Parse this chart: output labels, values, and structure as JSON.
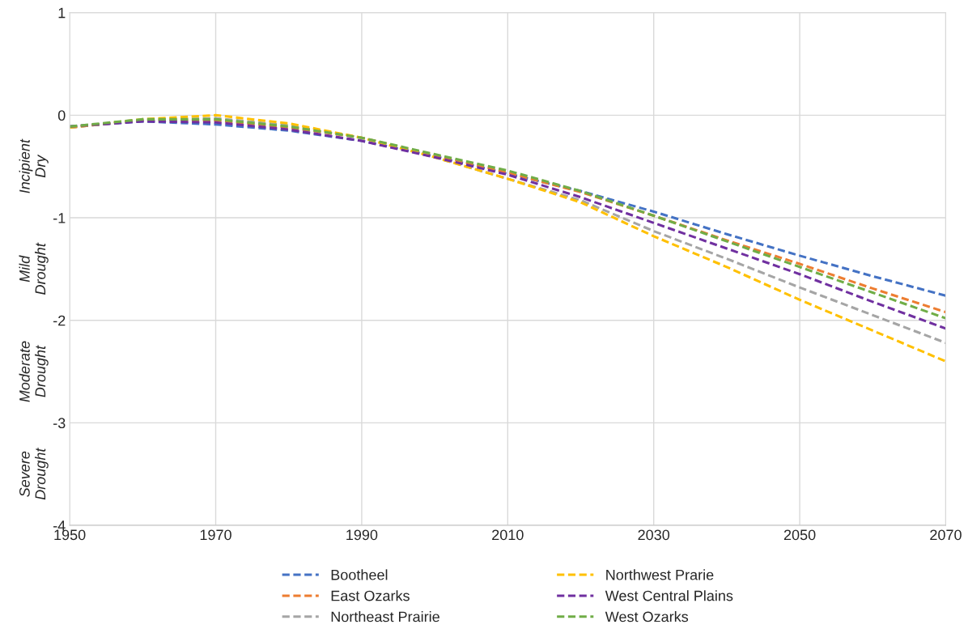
{
  "chart_data": {
    "type": "line",
    "x": [
      1950,
      1960,
      1970,
      1980,
      1990,
      2000,
      2010,
      2020,
      2030,
      2040,
      2050,
      2060,
      2070
    ],
    "series": [
      {
        "name": "Bootheel",
        "color": "#4472c4",
        "values": [
          -0.11,
          -0.06,
          -0.09,
          -0.15,
          -0.25,
          -0.4,
          -0.57,
          -0.74,
          -0.94,
          -1.16,
          -1.37,
          -1.57,
          -1.76
        ]
      },
      {
        "name": "East Ozarks",
        "color": "#ed7d31",
        "values": [
          -0.12,
          -0.05,
          -0.05,
          -0.12,
          -0.22,
          -0.39,
          -0.56,
          -0.75,
          -0.98,
          -1.22,
          -1.45,
          -1.69,
          -1.92
        ]
      },
      {
        "name": "Northeast Prairie",
        "color": "#a5a5a5",
        "values": [
          -0.12,
          -0.05,
          -0.03,
          -0.1,
          -0.22,
          -0.41,
          -0.62,
          -0.83,
          -1.13,
          -1.4,
          -1.68,
          -1.95,
          -2.22
        ]
      },
      {
        "name": "Northwest Prarie",
        "color": "#ffc000",
        "values": [
          -0.12,
          -0.04,
          0.0,
          -0.08,
          -0.22,
          -0.41,
          -0.62,
          -0.85,
          -1.18,
          -1.48,
          -1.8,
          -2.1,
          -2.4
        ]
      },
      {
        "name": "West Central Plains",
        "color": "#7030a0",
        "values": [
          -0.11,
          -0.06,
          -0.07,
          -0.14,
          -0.25,
          -0.41,
          -0.58,
          -0.8,
          -1.05,
          -1.3,
          -1.55,
          -1.82,
          -2.08
        ]
      },
      {
        "name": "West Ozarks",
        "color": "#70ad47",
        "values": [
          -0.11,
          -0.04,
          -0.04,
          -0.11,
          -0.22,
          -0.38,
          -0.54,
          -0.74,
          -0.98,
          -1.23,
          -1.48,
          -1.73,
          -1.98
        ]
      }
    ],
    "line_style": "dashed",
    "marker": "none",
    "xlim": [
      1950,
      2070
    ],
    "xticks": [
      1950,
      1970,
      1990,
      2010,
      2030,
      2050,
      2070
    ],
    "ylim": [
      -4,
      1
    ],
    "yticks": [
      -4,
      -3,
      -2,
      -1,
      0,
      1
    ],
    "grid": true,
    "legend": "bottom",
    "annotations": [
      "Incipient\nDry",
      "Mild\nDrought",
      "Moderate\nDrought",
      "Severe\nDrought"
    ]
  }
}
